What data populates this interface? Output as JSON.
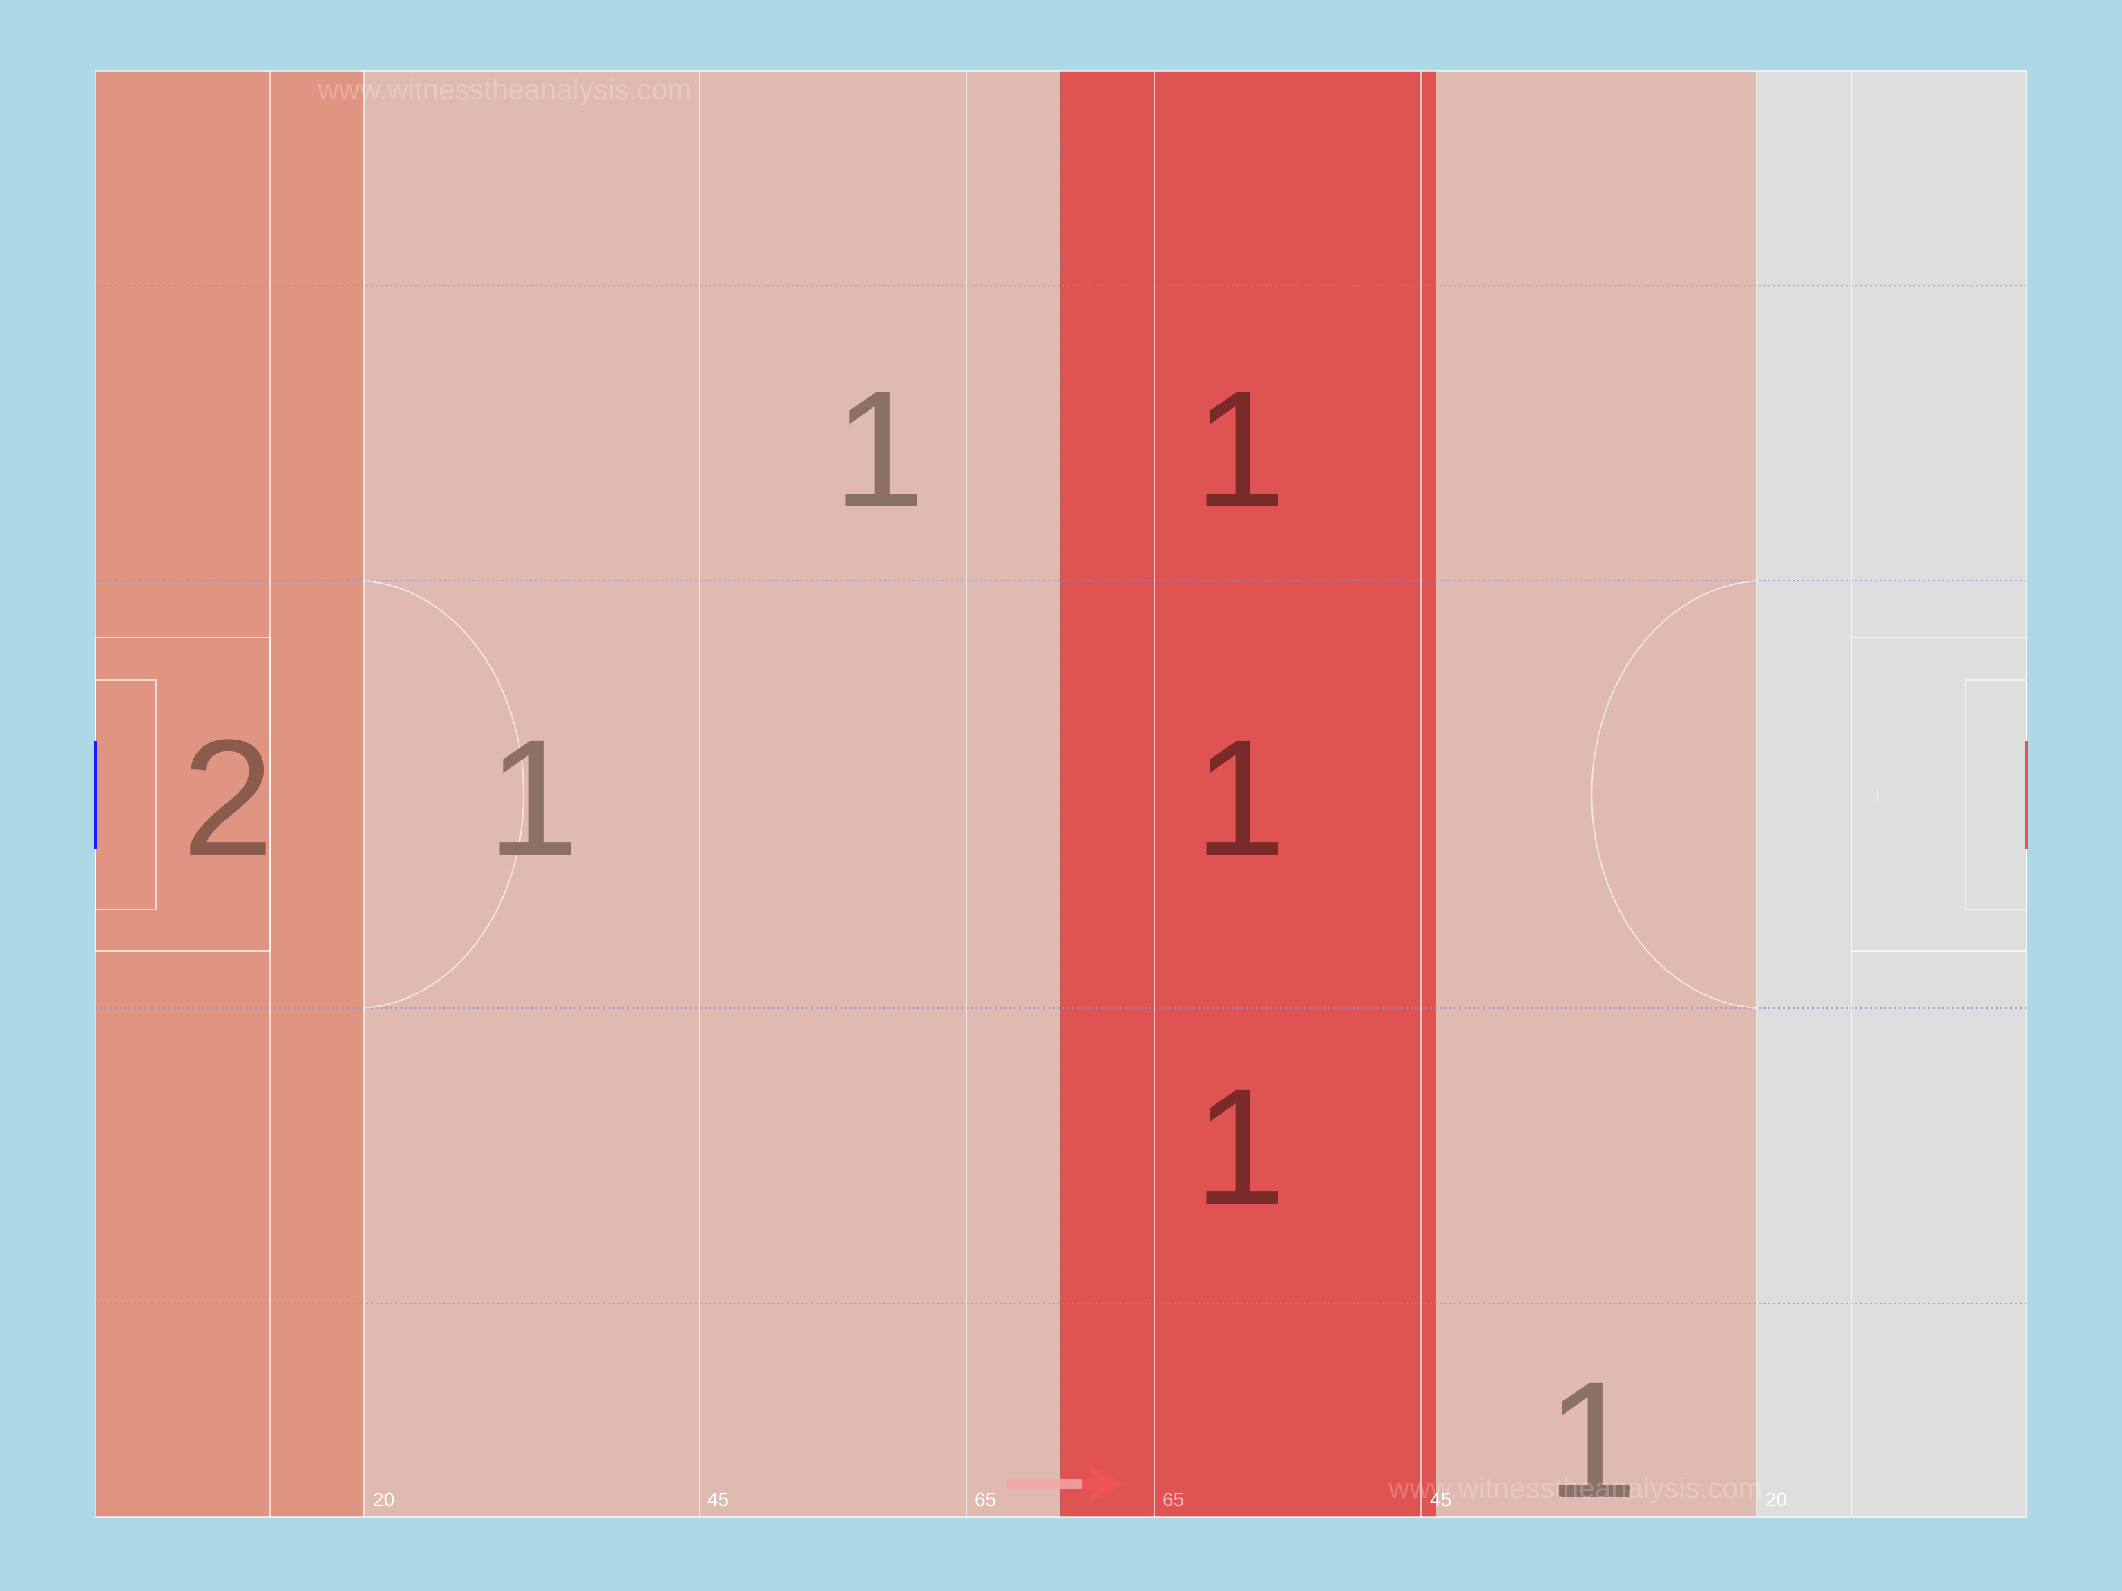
{
  "watermarks": {
    "top": "www.witnesstheanalysis.com",
    "bottom": "www.witnesstheanalysis.com"
  },
  "yard_markers": {
    "left_20": "20",
    "left_45": "45",
    "left_65": "65",
    "right_65": "65",
    "right_45": "45",
    "right_20": "20"
  },
  "zone_counts": {
    "left_goal_middle": "2",
    "left_20_45_middle": "1",
    "left_45_65_upper": "1",
    "center_upper": "1",
    "center_middle": "1",
    "center_lower": "1",
    "right_45_20_bottom": "1"
  },
  "colors": {
    "background": "#add8e6",
    "pitch_unshaded": "#dedede",
    "shade_light": "#dfbab0",
    "shade_medium": "#e09582",
    "shade_hot": "#e05353",
    "count_text_light": "#8b7068",
    "count_text_dark": "#7a2a28",
    "attack_arrow": "#f05558",
    "left_goal": "#1a1aff",
    "right_goal": "#e05353"
  },
  "attack_direction": "right"
}
